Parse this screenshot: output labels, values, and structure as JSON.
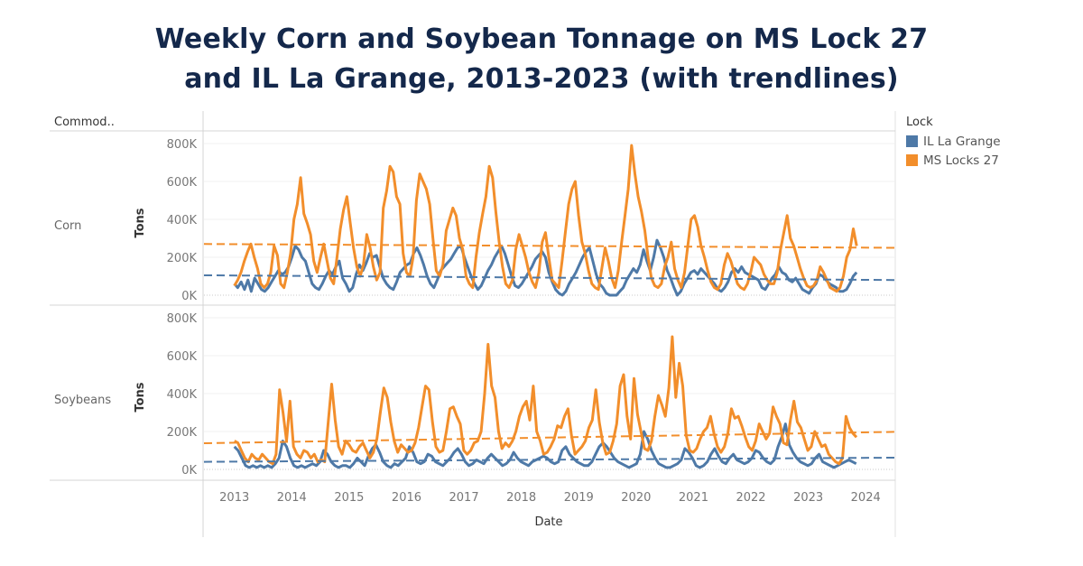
{
  "title_line1": "Weekly Corn and Soybean Tonnage on MS Lock 27",
  "title_line2": "and IL La Grange, 2013-2023 (with trendlines)",
  "legend": {
    "title": "Lock",
    "items": [
      {
        "label": "IL La Grange",
        "color": "#4e79a7"
      },
      {
        "label": "MS Locks 27",
        "color": "#f28e2b"
      }
    ]
  },
  "chart_data": {
    "type": "line",
    "title": "Weekly Corn and Soybean Tonnage on MS Lock 27 and IL La Grange, 2013-2023 (with trendlines)",
    "row_header": "Commod..",
    "xlabel": "Date",
    "ylabel": "Tons",
    "x_ticks": [
      "2013",
      "2014",
      "2015",
      "2016",
      "2017",
      "2018",
      "2019",
      "2020",
      "2021",
      "2022",
      "2023",
      "2024"
    ],
    "xlim": [
      2012.47,
      2024.5
    ],
    "y_ticks": [
      "0K",
      "200K",
      "400K",
      "600K",
      "800K"
    ],
    "ylim": [
      0,
      800000
    ],
    "grid": true,
    "legend_position": "right",
    "x_step_years": 0.0833,
    "x_start": 2013.0,
    "panels": [
      {
        "name": "Corn",
        "series": [
          {
            "name": "IL La Grange",
            "color": "#4e79a7",
            "values_k": [
              60,
              40,
              70,
              30,
              80,
              20,
              90,
              60,
              30,
              20,
              40,
              70,
              100,
              130,
              110,
              120,
              150,
              200,
              260,
              240,
              200,
              180,
              120,
              60,
              40,
              30,
              60,
              100,
              130,
              110,
              150,
              180,
              90,
              60,
              20,
              40,
              110,
              160,
              130,
              170,
              220,
              200,
              210,
              150,
              90,
              60,
              40,
              30,
              70,
              120,
              140,
              160,
              170,
              220,
              250,
              210,
              160,
              100,
              60,
              40,
              80,
              130,
              150,
              170,
              190,
              220,
              250,
              260,
              200,
              150,
              100,
              60,
              30,
              50,
              90,
              130,
              160,
              200,
              230,
              260,
              220,
              160,
              100,
              50,
              40,
              60,
              90,
              120,
              150,
              190,
              210,
              230,
              200,
              120,
              70,
              30,
              10,
              0,
              20,
              60,
              90,
              120,
              160,
              200,
              230,
              250,
              180,
              110,
              60,
              40,
              10,
              0,
              0,
              0,
              20,
              40,
              80,
              110,
              140,
              120,
              160,
              240,
              180,
              130,
              200,
              290,
              250,
              200,
              130,
              90,
              40,
              0,
              20,
              60,
              90,
              120,
              130,
              110,
              140,
              120,
              100,
              80,
              60,
              30,
              20,
              40,
              70,
              120,
              140,
              120,
              150,
              120,
              110,
              100,
              90,
              80,
              40,
              30,
              60,
              90,
              110,
              150,
              120,
              110,
              80,
              70,
              90,
              60,
              30,
              20,
              10,
              40,
              60,
              110,
              100,
              80,
              60,
              50,
              40,
              20,
              20,
              30,
              60,
              100,
              120
            ]
          },
          {
            "name": "MS Locks 27",
            "color": "#f28e2b",
            "values_k": [
              50,
              80,
              120,
              180,
              230,
              270,
              200,
              140,
              60,
              40,
              60,
              120,
              260,
              210,
              60,
              40,
              120,
              220,
              400,
              480,
              620,
              430,
              380,
              320,
              180,
              120,
              200,
              270,
              180,
              90,
              60,
              200,
              350,
              450,
              520,
              380,
              250,
              150,
              100,
              160,
              320,
              250,
              150,
              80,
              120,
              460,
              550,
              680,
              650,
              520,
              480,
              220,
              120,
              100,
              200,
              500,
              640,
              600,
              560,
              480,
              300,
              130,
              100,
              160,
              340,
              400,
              460,
              420,
              300,
              240,
              100,
              60,
              40,
              200,
              330,
              430,
              520,
              680,
              620,
              440,
              280,
              150,
              60,
              40,
              80,
              240,
              320,
              260,
              200,
              120,
              70,
              40,
              120,
              280,
              330,
              200,
              80,
              60,
              40,
              180,
              330,
              480,
              560,
              600,
              420,
              280,
              220,
              130,
              60,
              40,
              30,
              140,
              250,
              180,
              90,
              40,
              130,
              280,
              420,
              560,
              790,
              640,
              520,
              440,
              340,
              200,
              90,
              50,
              40,
              60,
              150,
              200,
              280,
              140,
              80,
              40,
              120,
              260,
              400,
              420,
              360,
              260,
              200,
              130,
              70,
              40,
              30,
              60,
              160,
              220,
              180,
              120,
              60,
              40,
              30,
              60,
              120,
              200,
              180,
              160,
              110,
              80,
              60,
              60,
              120,
              240,
              330,
              420,
              300,
              260,
              200,
              140,
              90,
              50,
              40,
              50,
              80,
              150,
              120,
              80,
              40,
              30,
              20,
              40,
              100,
              200,
              240,
              350,
              260
            ]
          }
        ],
        "trendlines": [
          {
            "name": "IL La Grange",
            "start_k": 105,
            "end_k": 80
          },
          {
            "name": "MS Locks 27",
            "start_k": 270,
            "end_k": 250
          }
        ]
      },
      {
        "name": "Soybeans",
        "series": [
          {
            "name": "IL La Grange",
            "color": "#4e79a7",
            "values_k": [
              120,
              100,
              60,
              20,
              10,
              20,
              10,
              20,
              10,
              20,
              10,
              30,
              60,
              150,
              120,
              60,
              20,
              10,
              20,
              10,
              20,
              30,
              20,
              40,
              100,
              80,
              40,
              20,
              10,
              20,
              20,
              10,
              30,
              60,
              40,
              20,
              70,
              110,
              130,
              90,
              40,
              20,
              10,
              30,
              20,
              40,
              60,
              120,
              90,
              40,
              30,
              40,
              80,
              70,
              40,
              30,
              20,
              40,
              60,
              90,
              110,
              80,
              40,
              20,
              30,
              50,
              40,
              30,
              60,
              80,
              60,
              40,
              20,
              30,
              50,
              90,
              60,
              40,
              30,
              20,
              40,
              50,
              60,
              70,
              60,
              40,
              30,
              40,
              100,
              120,
              80,
              60,
              40,
              30,
              20,
              20,
              40,
              80,
              120,
              140,
              120,
              90,
              60,
              40,
              30,
              20,
              10,
              20,
              30,
              80,
              200,
              160,
              100,
              60,
              30,
              20,
              10,
              10,
              20,
              30,
              50,
              110,
              90,
              60,
              20,
              10,
              20,
              40,
              80,
              110,
              70,
              40,
              30,
              60,
              80,
              50,
              40,
              30,
              40,
              60,
              100,
              90,
              60,
              40,
              30,
              50,
              120,
              170,
              240,
              130,
              90,
              60,
              40,
              30,
              20,
              30,
              60,
              80,
              40,
              30,
              20,
              10,
              20,
              30,
              40,
              50,
              40,
              30
            ]
          },
          {
            "name": "MS Locks 27",
            "color": "#f28e2b",
            "values_k": [
              150,
              140,
              100,
              60,
              40,
              80,
              60,
              50,
              80,
              60,
              40,
              30,
              80,
              420,
              300,
              150,
              360,
              120,
              80,
              60,
              100,
              90,
              60,
              80,
              40,
              50,
              40,
              250,
              450,
              260,
              120,
              80,
              150,
              130,
              100,
              90,
              120,
              140,
              100,
              60,
              90,
              160,
              300,
              430,
              380,
              250,
              150,
              90,
              130,
              110,
              90,
              100,
              140,
              220,
              330,
              440,
              420,
              250,
              120,
              90,
              100,
              200,
              320,
              330,
              280,
              240,
              100,
              80,
              100,
              140,
              150,
              200,
              400,
              660,
              440,
              380,
              200,
              110,
              140,
              120,
              150,
              200,
              280,
              330,
              360,
              260,
              440,
              200,
              150,
              80,
              90,
              120,
              160,
              230,
              220,
              280,
              320,
              180,
              80,
              100,
              120,
              150,
              220,
              260,
              420,
              250,
              140,
              80,
              90,
              150,
              240,
              440,
              500,
              280,
              160,
              480,
              290,
              200,
              110,
              100,
              150,
              280,
              390,
              340,
              280,
              430,
              700,
              380,
              560,
              440,
              180,
              100,
              90,
              110,
              160,
              200,
              220,
              280,
              190,
              120,
              90,
              120,
              190,
              320,
              270,
              280,
              230,
              170,
              120,
              100,
              150,
              240,
              200,
              160,
              190,
              330,
              280,
              240,
              140,
              130,
              260,
              360,
              250,
              220,
              160,
              100,
              120,
              200,
              160,
              120,
              130,
              80,
              60,
              40,
              30,
              60,
              280,
              220,
              190,
              170
            ]
          }
        ],
        "trendlines": [
          {
            "name": "IL La Grange",
            "start_k": 40,
            "end_k": 62
          },
          {
            "name": "MS Locks 27",
            "start_k": 138,
            "end_k": 198
          }
        ]
      }
    ]
  }
}
